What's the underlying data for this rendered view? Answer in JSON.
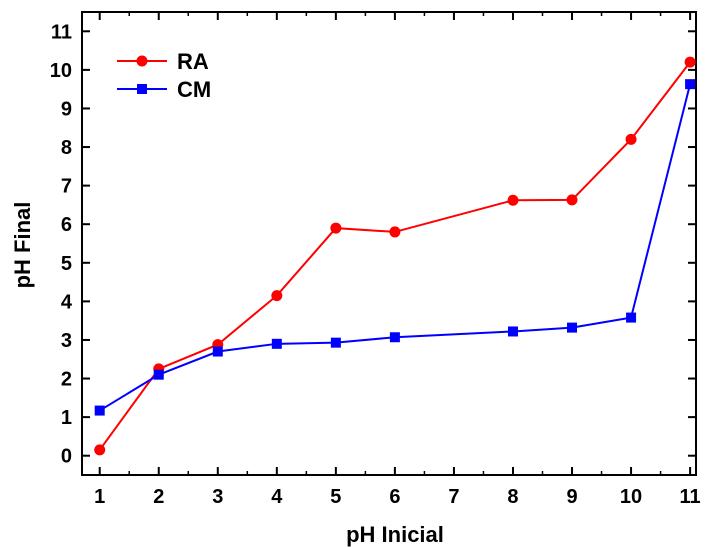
{
  "chart_data": {
    "type": "line",
    "title": "",
    "xlabel": "pH Inicial",
    "ylabel": "pH Final",
    "categories": [
      "1",
      "2",
      "3",
      "4",
      "5",
      "6",
      "7",
      "8",
      "9",
      "10",
      "11"
    ],
    "x": [
      1,
      2,
      3,
      4,
      5,
      6,
      8,
      9,
      10,
      11
    ],
    "xlim": [
      0.7,
      11.1
    ],
    "ylim": [
      -0.5,
      11.5
    ],
    "yticks": [
      "0",
      "1",
      "2",
      "3",
      "4",
      "5",
      "6",
      "7",
      "8",
      "9",
      "10",
      "11"
    ],
    "grid": false,
    "legend_position": "top-left",
    "series": [
      {
        "name": "RA",
        "color": "#ff0000",
        "marker": "circle",
        "values": [
          0.15,
          2.25,
          2.88,
          4.15,
          5.9,
          5.8,
          6.62,
          6.63,
          8.2,
          10.2
        ]
      },
      {
        "name": "CM",
        "color": "#0000ff",
        "marker": "square",
        "values": [
          1.17,
          2.1,
          2.7,
          2.9,
          2.93,
          3.07,
          3.22,
          3.32,
          3.58,
          9.63
        ]
      }
    ]
  }
}
